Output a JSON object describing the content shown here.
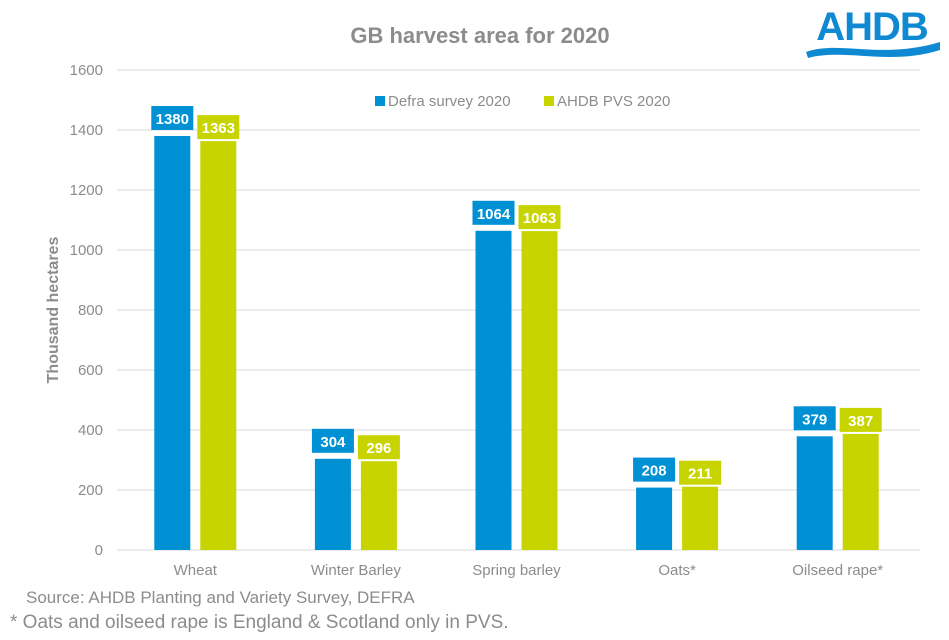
{
  "logo": {
    "text": "AHDB",
    "color": "#0f8ad2"
  },
  "notes": {
    "source": "Source: AHDB Planting and Variety Survey, DEFRA",
    "footnote": "* Oats and oilseed rape is England & Scotland only in PVS."
  },
  "chart_data": {
    "type": "bar",
    "title": "GB harvest area for 2020",
    "xlabel": "",
    "ylabel": "Thousand hectares",
    "ylim": [
      0,
      1600
    ],
    "yticks": [
      0,
      200,
      400,
      600,
      800,
      1000,
      1200,
      1400,
      1600
    ],
    "grid": true,
    "legend_position": "top-center",
    "categories": [
      "Wheat",
      "Winter Barley",
      "Spring barley",
      "Oats*",
      "Oilseed rape*"
    ],
    "series": [
      {
        "name": "Defra survey 2020",
        "color": "#0090d4",
        "values": [
          1380,
          304,
          1064,
          208,
          379
        ]
      },
      {
        "name": "AHDB PVS 2020",
        "color": "#c8d400",
        "values": [
          1363,
          296,
          1063,
          211,
          387
        ]
      }
    ],
    "data_labels": true
  }
}
